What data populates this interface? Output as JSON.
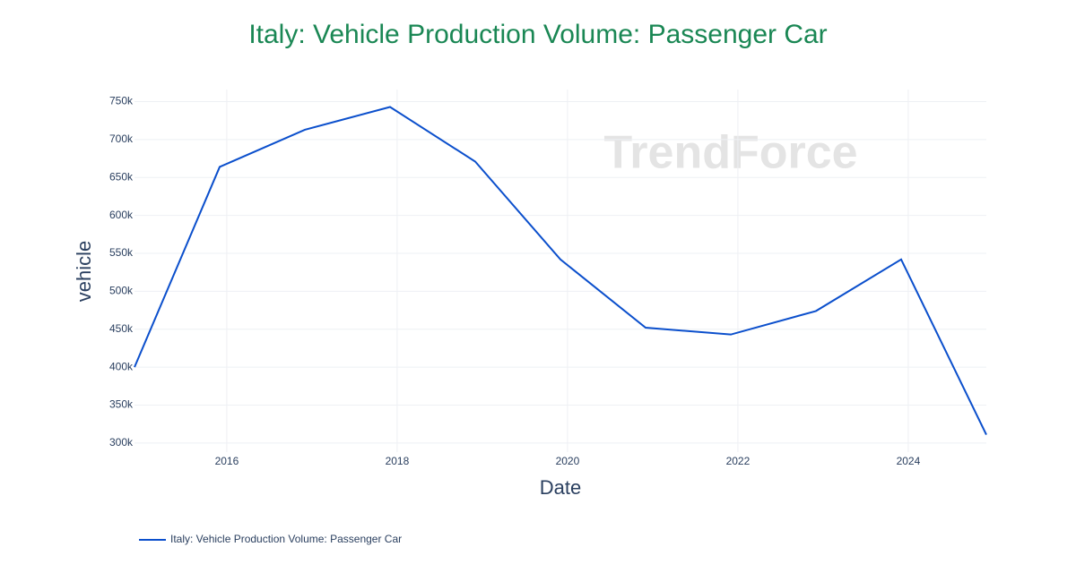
{
  "chart_data": {
    "type": "line",
    "title": "Italy: Vehicle Production Volume: Passenger Car",
    "x_label": "Date",
    "y_label": "vehicle",
    "watermark": "TrendForce",
    "x": [
      "2014-12",
      "2015-12",
      "2016-12",
      "2017-12",
      "2018-12",
      "2019-12",
      "2020-12",
      "2021-12",
      "2022-12",
      "2023-12",
      "2024-12"
    ],
    "series": [
      {
        "name": "Italy: Vehicle Production Volume: Passenger Car",
        "color": "#0b4fcc",
        "values": [
          400000,
          664000,
          713000,
          743000,
          671000,
          542000,
          452000,
          443000,
          474000,
          542000,
          311000
        ]
      }
    ],
    "xlim": [
      "2014-12",
      "2024-12"
    ],
    "xticks": [
      "2016",
      "2018",
      "2020",
      "2022",
      "2024"
    ],
    "ylim": [
      288000,
      766000
    ],
    "yticks": [
      {
        "value": 300000,
        "label": "300k"
      },
      {
        "value": 350000,
        "label": "350k"
      },
      {
        "value": 400000,
        "label": "400k"
      },
      {
        "value": 450000,
        "label": "450k"
      },
      {
        "value": 500000,
        "label": "500k"
      },
      {
        "value": 550000,
        "label": "550k"
      },
      {
        "value": 600000,
        "label": "600k"
      },
      {
        "value": 650000,
        "label": "650k"
      },
      {
        "value": 700000,
        "label": "700k"
      },
      {
        "value": 750000,
        "label": "750k"
      }
    ],
    "grid": true,
    "legend": "bottom-left"
  }
}
